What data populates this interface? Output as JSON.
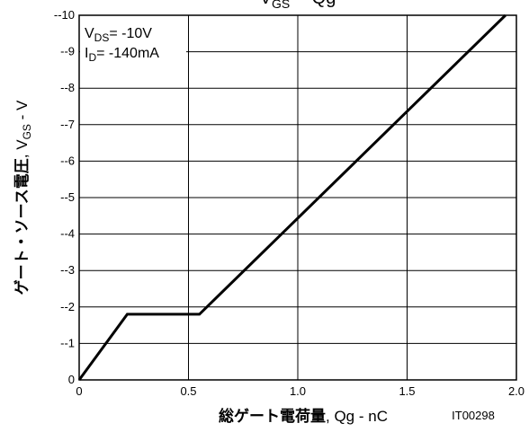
{
  "chart_data": {
    "type": "line",
    "title": "V_GS -- Qg",
    "title_parts": {
      "v": "V",
      "sub": "GS",
      "rest": " -- Qg"
    },
    "xlabel": {
      "jp": "総ゲート電荷量",
      "rest": ", Qg - nC"
    },
    "ylabel": {
      "jp": "ゲート・ソース電圧",
      "rest_v": ", V",
      "rest_sub": "GS",
      "rest_end": " - V"
    },
    "xlim": [
      0,
      2.0
    ],
    "ylim": [
      0,
      -10
    ],
    "x_ticks": [
      0,
      0.5,
      1.0,
      1.5,
      2.0
    ],
    "x_tick_labels": [
      "0",
      "0.5",
      "1.0",
      "1.5",
      "2.0"
    ],
    "y_ticks": [
      0,
      -1,
      -2,
      -3,
      -4,
      -5,
      -6,
      -7,
      -8,
      -9,
      -10
    ],
    "y_tick_labels": [
      "0",
      "--1",
      "--2",
      "--3",
      "--4",
      "--5",
      "--6",
      "--7",
      "--8",
      "--9",
      "--10"
    ],
    "grid": true,
    "annotations": {
      "vds": {
        "v": "V",
        "sub": "DS",
        "rest": "= -10V"
      },
      "id": {
        "v": "I",
        "sub": "D",
        "rest": "= -140mA"
      }
    },
    "code": "IT00298",
    "series": [
      {
        "x": [
          0,
          0.22,
          0.55,
          1.95
        ],
        "y": [
          0,
          -1.8,
          -1.8,
          -10
        ]
      }
    ]
  }
}
